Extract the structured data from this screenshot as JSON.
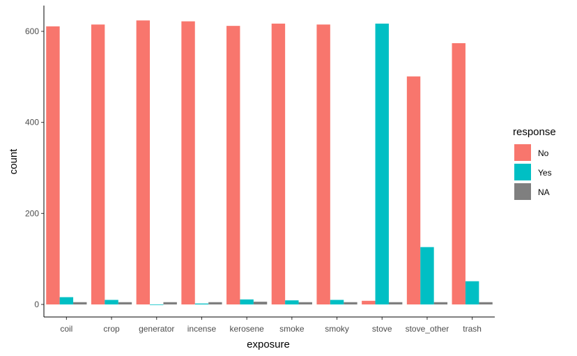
{
  "chart_data": {
    "type": "bar",
    "xlabel": "exposure",
    "ylabel": "count",
    "categories": [
      "coil",
      "crop",
      "generator",
      "incense",
      "kerosene",
      "smoke",
      "smoky",
      "stove",
      "stove_other",
      "trash"
    ],
    "series": [
      {
        "name": "No",
        "color": "#F8766D",
        "values": [
          611,
          615,
          624,
          622,
          612,
          617,
          615,
          8,
          501,
          574
        ]
      },
      {
        "name": "Yes",
        "color": "#00BFC4",
        "values": [
          16,
          10,
          0,
          2,
          11,
          9,
          10,
          617,
          126,
          51
        ]
      },
      {
        "name": "NA",
        "color": "#7F7F7F",
        "values": [
          5,
          5,
          5,
          5,
          6,
          5,
          5,
          5,
          5,
          5
        ]
      }
    ],
    "ylim": [
      0,
      640
    ],
    "yticks": [
      0,
      200,
      400,
      600
    ],
    "legend": {
      "title": "response",
      "position": "right"
    },
    "grid": false
  }
}
